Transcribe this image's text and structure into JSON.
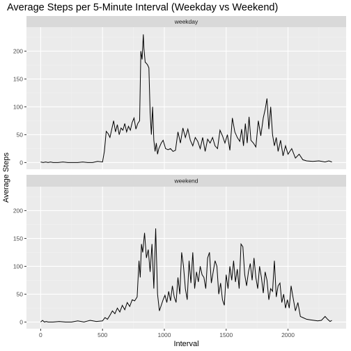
{
  "chart_data": {
    "type": "line",
    "title": "Average Steps per 5-Minute Interval (Weekday vs Weekend)",
    "xlabel": "Interval",
    "ylabel": "Average Steps",
    "xlim": [
      -115,
      2470
    ],
    "ylim": [
      -12,
      243
    ],
    "x_ticks": [
      0,
      500,
      1000,
      1500,
      2000
    ],
    "y_ticks": [
      0,
      50,
      100,
      150,
      200
    ],
    "grid": true,
    "line_color": "#000000",
    "panel_background": "#ebebeb",
    "strip_background": "#d9d9d9",
    "facets": [
      {
        "name": "weekday",
        "x": [
          0,
          20,
          40,
          60,
          80,
          100,
          140,
          180,
          220,
          260,
          300,
          340,
          380,
          420,
          460,
          500,
          515,
          530,
          545,
          560,
          575,
          590,
          605,
          620,
          635,
          650,
          665,
          680,
          695,
          710,
          725,
          740,
          755,
          770,
          785,
          800,
          810,
          820,
          830,
          835,
          845,
          855,
          865,
          875,
          885,
          895,
          905,
          915,
          925,
          935,
          945,
          955,
          965,
          975,
          990,
          1010,
          1030,
          1050,
          1070,
          1090,
          1110,
          1130,
          1150,
          1170,
          1190,
          1210,
          1230,
          1250,
          1270,
          1290,
          1310,
          1330,
          1350,
          1370,
          1390,
          1410,
          1430,
          1450,
          1470,
          1490,
          1510,
          1530,
          1550,
          1570,
          1590,
          1610,
          1625,
          1640,
          1655,
          1670,
          1685,
          1700,
          1720,
          1740,
          1760,
          1780,
          1800,
          1815,
          1830,
          1845,
          1860,
          1875,
          1890,
          1905,
          1920,
          1940,
          1960,
          1980,
          2000,
          2030,
          2060,
          2090,
          2120,
          2150,
          2200,
          2250,
          2300,
          2330,
          2355
        ],
        "y": [
          1,
          0,
          1,
          0,
          1,
          0,
          0,
          1,
          0,
          0,
          0,
          1,
          0,
          0,
          2,
          1,
          20,
          56,
          52,
          45,
          60,
          75,
          55,
          68,
          50,
          62,
          58,
          70,
          55,
          65,
          58,
          72,
          80,
          60,
          70,
          75,
          200,
          185,
          230,
          205,
          180,
          178,
          175,
          170,
          90,
          50,
          100,
          40,
          20,
          35,
          15,
          25,
          30,
          35,
          40,
          25,
          23,
          25,
          20,
          22,
          55,
          35,
          62,
          45,
          60,
          40,
          30,
          45,
          38,
          25,
          45,
          20,
          42,
          35,
          45,
          30,
          25,
          58,
          48,
          35,
          50,
          22,
          80,
          55,
          45,
          38,
          60,
          30,
          70,
          35,
          82,
          40,
          35,
          28,
          75,
          48,
          80,
          95,
          115,
          60,
          100,
          50,
          30,
          45,
          20,
          40,
          12,
          30,
          15,
          25,
          8,
          15,
          5,
          3,
          2,
          3,
          1,
          3,
          1
        ]
      },
      {
        "name": "weekend",
        "x": [
          0,
          15,
          30,
          45,
          60,
          100,
          150,
          200,
          250,
          300,
          350,
          400,
          450,
          500,
          520,
          540,
          560,
          580,
          600,
          620,
          640,
          660,
          680,
          700,
          720,
          740,
          760,
          780,
          795,
          805,
          815,
          825,
          840,
          855,
          870,
          885,
          900,
          915,
          930,
          945,
          960,
          975,
          990,
          1005,
          1020,
          1035,
          1050,
          1065,
          1080,
          1095,
          1110,
          1125,
          1140,
          1155,
          1170,
          1185,
          1200,
          1215,
          1230,
          1245,
          1260,
          1275,
          1290,
          1305,
          1320,
          1335,
          1350,
          1365,
          1380,
          1395,
          1410,
          1425,
          1440,
          1455,
          1470,
          1485,
          1500,
          1515,
          1530,
          1545,
          1560,
          1575,
          1590,
          1605,
          1620,
          1635,
          1650,
          1665,
          1680,
          1695,
          1710,
          1725,
          1740,
          1755,
          1770,
          1785,
          1800,
          1815,
          1830,
          1845,
          1860,
          1875,
          1890,
          1905,
          1920,
          1935,
          1950,
          1965,
          1980,
          1995,
          2010,
          2025,
          2040,
          2060,
          2080,
          2100,
          2120,
          2150,
          2180,
          2210,
          2240,
          2270,
          2300,
          2320,
          2340,
          2355
        ],
        "y": [
          0,
          3,
          0,
          1,
          0,
          0,
          1,
          0,
          0,
          2,
          0,
          3,
          1,
          2,
          8,
          5,
          12,
          20,
          15,
          25,
          18,
          30,
          22,
          35,
          28,
          40,
          38,
          45,
          110,
          80,
          140,
          125,
          160,
          115,
          130,
          90,
          140,
          60,
          168,
          50,
          20,
          30,
          40,
          48,
          35,
          55,
          38,
          65,
          45,
          35,
          80,
          50,
          125,
          100,
          60,
          40,
          110,
          70,
          125,
          60,
          90,
          72,
          100,
          85,
          80,
          60,
          115,
          125,
          70,
          90,
          110,
          100,
          50,
          70,
          40,
          30,
          85,
          60,
          100,
          75,
          110,
          72,
          95,
          60,
          140,
          135,
          85,
          65,
          90,
          105,
          75,
          115,
          80,
          60,
          100,
          80,
          52,
          90,
          75,
          40,
          60,
          55,
          110,
          45,
          65,
          70,
          35,
          50,
          25,
          40,
          25,
          65,
          45,
          20,
          35,
          10,
          8,
          5,
          4,
          3,
          2,
          3,
          10,
          5,
          1,
          3
        ]
      }
    ]
  }
}
